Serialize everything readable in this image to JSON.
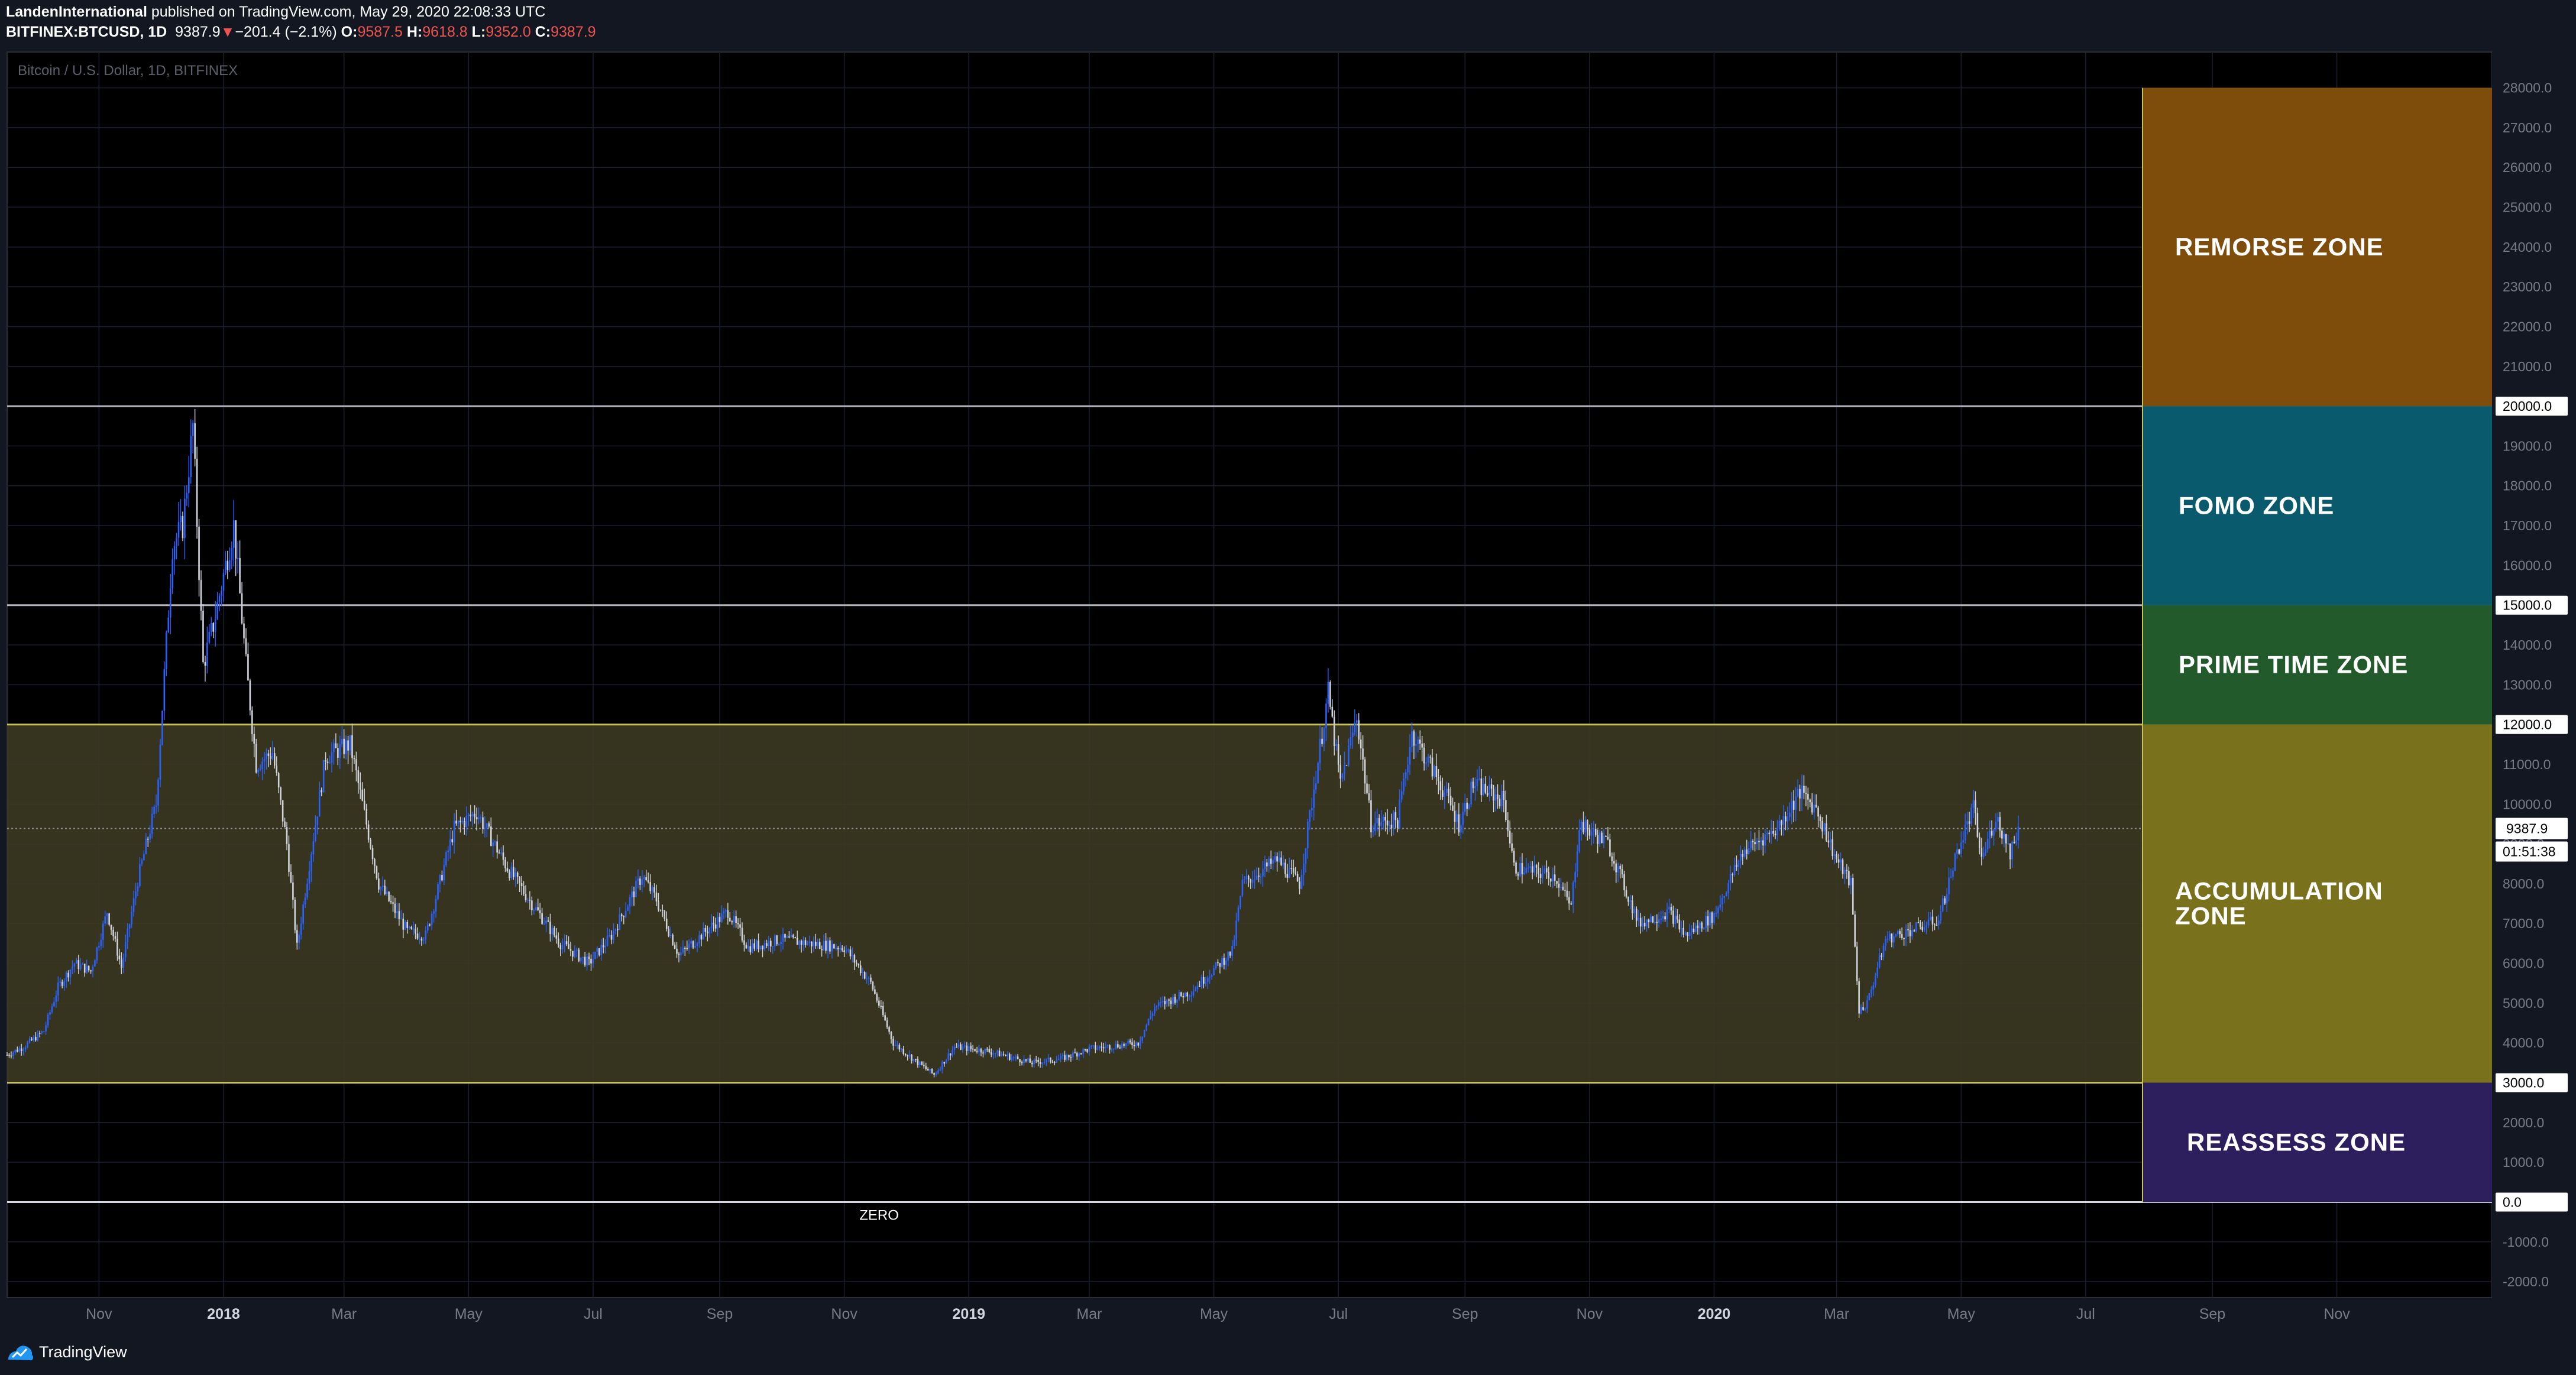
{
  "header": {
    "author": "LandenInternational",
    "published": "published on TradingView.com, May 29, 2020 22:08:33 UTC",
    "symbol_line": "BITFINEX:BTCUSD, 1D",
    "last": "9387.9",
    "change": "−201.4 (−2.1%)",
    "open_label": "O:",
    "open": "9587.5",
    "high_label": "H:",
    "high": "9618.8",
    "low_label": "L:",
    "low": "9352.0",
    "close_label": "C:",
    "close": "9387.9",
    "down_color": "#ef5350"
  },
  "footer": {
    "logo_text": "TradingView"
  },
  "chart_data": {
    "type": "candlestick",
    "title": "Bitcoin / U.S. Dollar, 1D, BITFINEX",
    "x_range": [
      "2017-09-17",
      "2021-01-16"
    ],
    "ylim": [
      -2400,
      28900
    ],
    "y_ticks": [
      -2000,
      -1000,
      0,
      1000,
      2000,
      3000,
      4000,
      5000,
      6000,
      7000,
      8000,
      9000,
      10000,
      11000,
      12000,
      13000,
      14000,
      15000,
      16000,
      17000,
      18000,
      19000,
      20000,
      21000,
      22000,
      23000,
      24000,
      25000,
      26000,
      27000,
      28000
    ],
    "x_ticks": [
      {
        "date": "2017-11-01",
        "label": "Nov",
        "bold": false
      },
      {
        "date": "2018-01-01",
        "label": "2018",
        "bold": true
      },
      {
        "date": "2018-03-01",
        "label": "Mar",
        "bold": false
      },
      {
        "date": "2018-05-01",
        "label": "May",
        "bold": false
      },
      {
        "date": "2018-07-01",
        "label": "Jul",
        "bold": false
      },
      {
        "date": "2018-09-01",
        "label": "Sep",
        "bold": false
      },
      {
        "date": "2018-11-01",
        "label": "Nov",
        "bold": false
      },
      {
        "date": "2019-01-01",
        "label": "2019",
        "bold": true
      },
      {
        "date": "2019-03-01",
        "label": "Mar",
        "bold": false
      },
      {
        "date": "2019-05-01",
        "label": "May",
        "bold": false
      },
      {
        "date": "2019-07-01",
        "label": "Jul",
        "bold": false
      },
      {
        "date": "2019-09-01",
        "label": "Sep",
        "bold": false
      },
      {
        "date": "2019-11-01",
        "label": "Nov",
        "bold": false
      },
      {
        "date": "2020-01-01",
        "label": "2020",
        "bold": true
      },
      {
        "date": "2020-03-01",
        "label": "Mar",
        "bold": false
      },
      {
        "date": "2020-05-01",
        "label": "May",
        "bold": false
      },
      {
        "date": "2020-07-01",
        "label": "Jul",
        "bold": false
      },
      {
        "date": "2020-09-01",
        "label": "Sep",
        "bold": false
      },
      {
        "date": "2020-11-01",
        "label": "Nov",
        "bold": false
      }
    ],
    "price_path": [
      [
        "2017-09-17",
        3700
      ],
      [
        "2017-09-25",
        3900
      ],
      [
        "2017-10-05",
        4300
      ],
      [
        "2017-10-12",
        5400
      ],
      [
        "2017-10-20",
        6000
      ],
      [
        "2017-10-28",
        5800
      ],
      [
        "2017-11-05",
        7300
      ],
      [
        "2017-11-12",
        5900
      ],
      [
        "2017-11-20",
        8100
      ],
      [
        "2017-11-29",
        10000
      ],
      [
        "2017-12-07",
        16500
      ],
      [
        "2017-12-12",
        17000
      ],
      [
        "2017-12-17",
        19500
      ],
      [
        "2017-12-22",
        13500
      ],
      [
        "2017-12-27",
        14500
      ],
      [
        "2018-01-06",
        17000
      ],
      [
        "2018-01-12",
        13500
      ],
      [
        "2018-01-17",
        11000
      ],
      [
        "2018-01-25",
        11300
      ],
      [
        "2018-02-01",
        9000
      ],
      [
        "2018-02-06",
        6400
      ],
      [
        "2018-02-12",
        8500
      ],
      [
        "2018-02-20",
        11200
      ],
      [
        "2018-03-04",
        11500
      ],
      [
        "2018-03-18",
        8000
      ],
      [
        "2018-04-01",
        6800
      ],
      [
        "2018-04-10",
        6700
      ],
      [
        "2018-04-24",
        9400
      ],
      [
        "2018-05-05",
        9800
      ],
      [
        "2018-05-20",
        8400
      ],
      [
        "2018-06-01",
        7500
      ],
      [
        "2018-06-15",
        6500
      ],
      [
        "2018-06-29",
        6000
      ],
      [
        "2018-07-10",
        6700
      ],
      [
        "2018-07-25",
        8200
      ],
      [
        "2018-08-01",
        7600
      ],
      [
        "2018-08-12",
        6200
      ],
      [
        "2018-08-25",
        6800
      ],
      [
        "2018-09-05",
        7300
      ],
      [
        "2018-09-15",
        6400
      ],
      [
        "2018-10-01",
        6600
      ],
      [
        "2018-10-15",
        6500
      ],
      [
        "2018-11-01",
        6400
      ],
      [
        "2018-11-14",
        5500
      ],
      [
        "2018-11-25",
        4000
      ],
      [
        "2018-12-07",
        3500
      ],
      [
        "2018-12-15",
        3200
      ],
      [
        "2018-12-25",
        3900
      ],
      [
        "2019-01-10",
        3800
      ],
      [
        "2019-02-01",
        3500
      ],
      [
        "2019-02-15",
        3600
      ],
      [
        "2019-03-01",
        3850
      ],
      [
        "2019-03-25",
        4000
      ],
      [
        "2019-04-02",
        4900
      ],
      [
        "2019-04-20",
        5300
      ],
      [
        "2019-05-10",
        6300
      ],
      [
        "2019-05-15",
        8000
      ],
      [
        "2019-06-01",
        8600
      ],
      [
        "2019-06-12",
        8000
      ],
      [
        "2019-06-26",
        12800
      ],
      [
        "2019-07-02",
        10500
      ],
      [
        "2019-07-10",
        12200
      ],
      [
        "2019-07-17",
        9500
      ],
      [
        "2019-07-30",
        9600
      ],
      [
        "2019-08-06",
        11800
      ],
      [
        "2019-08-20",
        10500
      ],
      [
        "2019-08-29",
        9500
      ],
      [
        "2019-09-05",
        10500
      ],
      [
        "2019-09-20",
        10100
      ],
      [
        "2019-09-25",
        8400
      ],
      [
        "2019-10-15",
        8200
      ],
      [
        "2019-10-23",
        7400
      ],
      [
        "2019-10-27",
        9500
      ],
      [
        "2019-11-10",
        9000
      ],
      [
        "2019-11-25",
        7000
      ],
      [
        "2019-12-10",
        7300
      ],
      [
        "2019-12-18",
        6700
      ],
      [
        "2020-01-01",
        7200
      ],
      [
        "2020-01-15",
        8800
      ],
      [
        "2020-02-01",
        9400
      ],
      [
        "2020-02-12",
        10300
      ],
      [
        "2020-02-20",
        9900
      ],
      [
        "2020-03-01",
        8600
      ],
      [
        "2020-03-08",
        8000
      ],
      [
        "2020-03-12",
        4800
      ],
      [
        "2020-03-16",
        5000
      ],
      [
        "2020-03-25",
        6600
      ],
      [
        "2020-04-05",
        6800
      ],
      [
        "2020-04-20",
        7100
      ],
      [
        "2020-04-29",
        8800
      ],
      [
        "2020-05-07",
        9900
      ],
      [
        "2020-05-11",
        8600
      ],
      [
        "2020-05-18",
        9700
      ],
      [
        "2020-05-25",
        8800
      ],
      [
        "2020-05-29",
        9387.9
      ]
    ],
    "price_line": {
      "value": 9387.9,
      "label": "9387.9",
      "countdown": "01:51:38"
    },
    "lines": [
      {
        "value": 20000,
        "label": "20000.0",
        "color": "#b2b5be"
      },
      {
        "value": 15000,
        "label": "15000.0",
        "color": "#b2b5be"
      },
      {
        "value": 12000,
        "label": "12000.0",
        "color": "#c8c25a"
      },
      {
        "value": 3000,
        "label": "3000.0",
        "color": "#c8c25a"
      },
      {
        "value": 0,
        "label": "0.0",
        "color": "#d1d4dc"
      }
    ],
    "zero_label": "ZERO",
    "accumulation_band": {
      "from": 3000,
      "to": 12000,
      "color": "#3c3a22"
    },
    "zones": [
      {
        "name": "REMORSE ZONE",
        "from": 20000,
        "to": 28000,
        "color": "#7e4d0c"
      },
      {
        "name": "FOMO ZONE",
        "from": 15000,
        "to": 20000,
        "color": "#085a6c"
      },
      {
        "name": "PRIME TIME ZONE",
        "from": 12000,
        "to": 15000,
        "color": "#235a2b"
      },
      {
        "name": "ACCUMULATION ZONE",
        "lines": [
          "ACCUMULATION",
          "ZONE"
        ],
        "from": 3000,
        "to": 12000,
        "color": "#7a711c"
      },
      {
        "name": "REASSESS ZONE",
        "from": 0,
        "to": 3000,
        "color": "#2d1e5e"
      }
    ],
    "colors": {
      "up": "#2962ff",
      "down": "#d1d4dc",
      "background": "#000000",
      "grid": "#1c2030"
    }
  }
}
